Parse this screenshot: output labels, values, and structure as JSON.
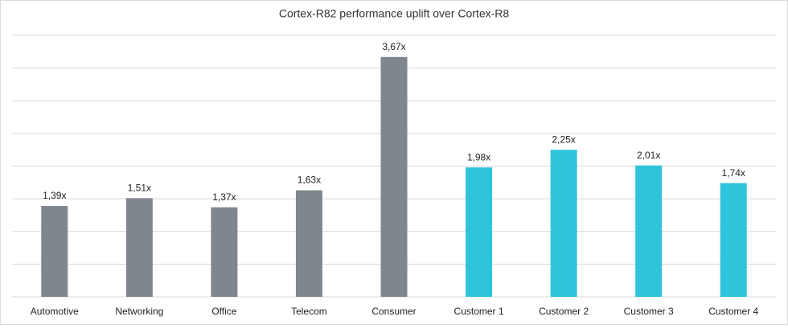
{
  "chart_data": {
    "type": "bar",
    "title": "Cortex-R82 performance uplift over Cortex-R8",
    "categories": [
      "Automotive",
      "Networking",
      "Office",
      "Telecom",
      "Consumer",
      "Customer 1",
      "Customer 2",
      "Customer 3",
      "Customer 4"
    ],
    "values": [
      1.39,
      1.51,
      1.37,
      1.63,
      3.67,
      1.98,
      2.25,
      2.01,
      1.74
    ],
    "value_labels": [
      "1,39x",
      "1,51x",
      "1,37x",
      "1,63x",
      "3,67x",
      "1,98x",
      "2,25x",
      "2,01x",
      "1,74x"
    ],
    "colors": [
      "#7f868d",
      "#7f868d",
      "#7f868d",
      "#7f868d",
      "#7f868d",
      "#2ec4dc",
      "#2ec4dc",
      "#2ec4dc",
      "#2ec4dc"
    ],
    "ylim": [
      0,
      4
    ],
    "yticks": [
      0,
      0.5,
      1,
      1.5,
      2,
      2.5,
      3,
      3.5,
      4
    ],
    "grid": true
  }
}
